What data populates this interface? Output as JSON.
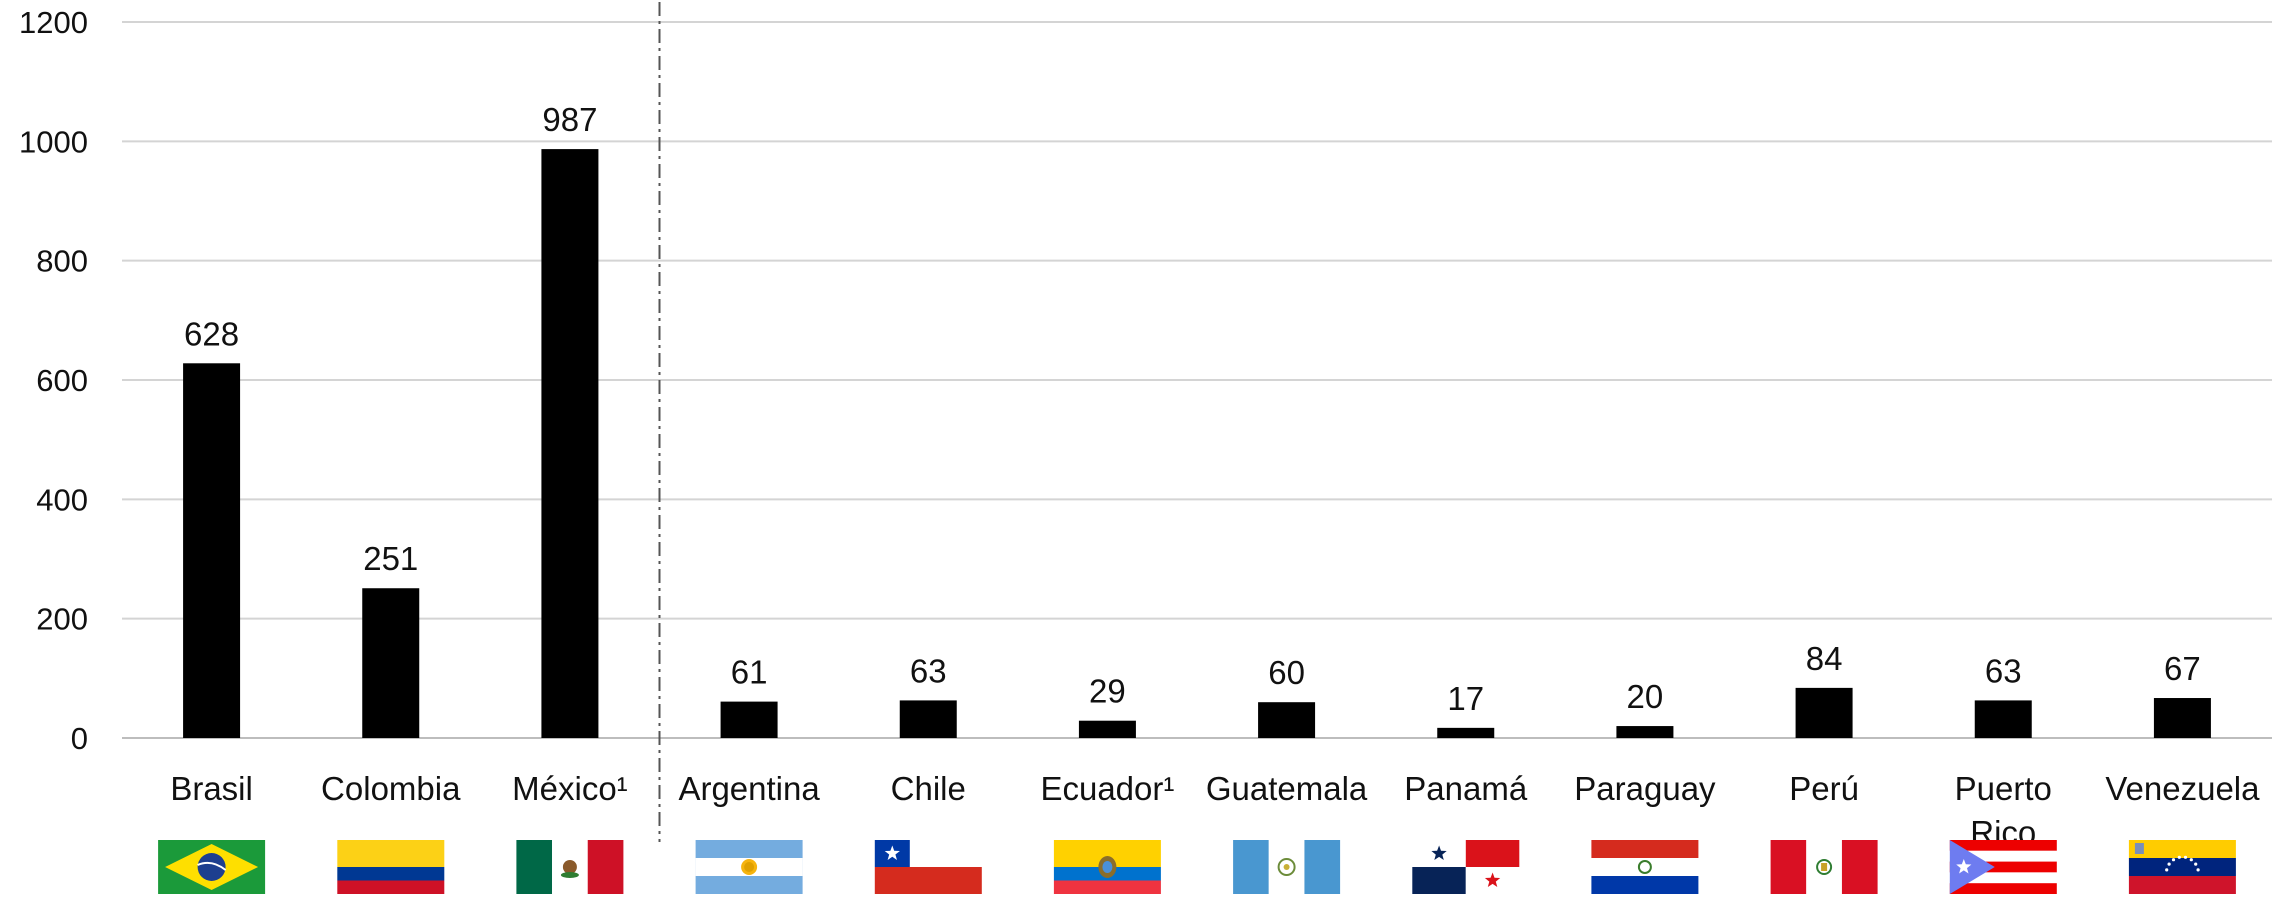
{
  "chart_data": {
    "type": "bar",
    "categories": [
      "Brasil",
      "Colombia",
      "México¹",
      "Argentina",
      "Chile",
      "Ecuador¹",
      "Guatemala",
      "Panamá",
      "Paraguay",
      "Perú",
      "Puerto Rico",
      "Venezuela"
    ],
    "values": [
      628,
      251,
      987,
      61,
      63,
      29,
      60,
      17,
      20,
      84,
      63,
      67
    ],
    "data_labels": [
      "628",
      "251",
      "987",
      "61",
      "63",
      "29",
      "60",
      "17",
      "20",
      "84",
      "63",
      "67"
    ],
    "title": "",
    "xlabel": "",
    "ylabel": "",
    "ylim": [
      0,
      1200
    ],
    "yticks": [
      "0",
      "200",
      "400",
      "600",
      "800",
      "1000",
      "1200"
    ],
    "grid": true,
    "legend": "none",
    "bar_color": "#000000",
    "divider_after_category": "México¹",
    "flag_icons": [
      "brazil-flag-icon",
      "colombia-flag-icon",
      "mexico-flag-icon",
      "argentina-flag-icon",
      "chile-flag-icon",
      "ecuador-flag-icon",
      "guatemala-flag-icon",
      "panama-flag-icon",
      "paraguay-flag-icon",
      "peru-flag-icon",
      "puerto-rico-flag-icon",
      "venezuela-flag-icon"
    ]
  }
}
